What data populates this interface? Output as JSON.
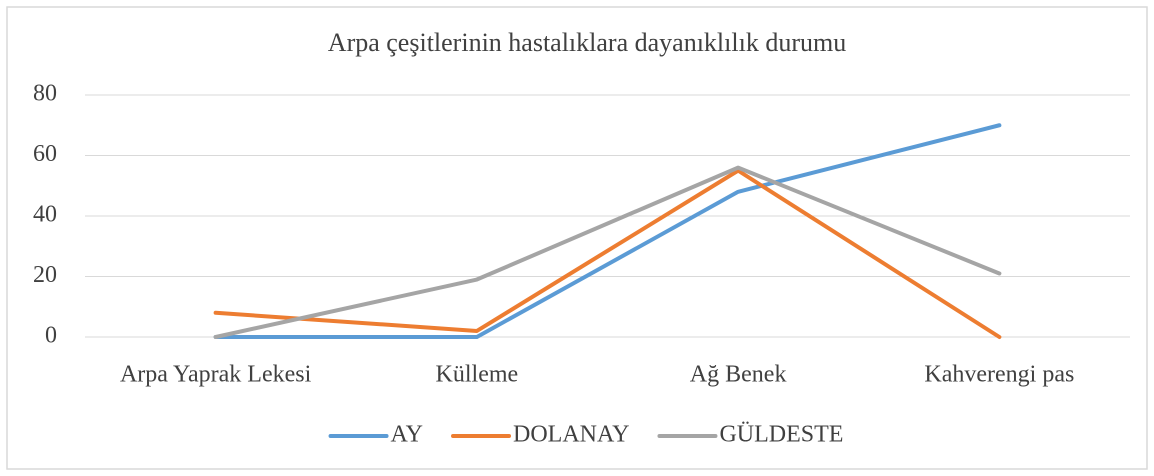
{
  "chart_data": {
    "type": "line",
    "title": "Arpa çeşitlerinin hastalıklara dayanıklılık durumu",
    "categories": [
      "Arpa Yaprak Lekesi",
      "Külleme",
      "Ağ Benek",
      "Kahverengi pas"
    ],
    "series": [
      {
        "name": "AY",
        "color": "#5b9bd5",
        "values": [
          0,
          0,
          48,
          70
        ]
      },
      {
        "name": "DOLANAY",
        "color": "#ed7d31",
        "values": [
          8,
          2,
          55,
          0
        ]
      },
      {
        "name": "GÜLDESTE",
        "color": "#a5a5a5",
        "values": [
          0,
          19,
          56,
          21
        ]
      }
    ],
    "ylim": [
      0,
      80
    ],
    "yticks": [
      0,
      20,
      40,
      60,
      80
    ],
    "grid": true,
    "legend": "bottom"
  }
}
